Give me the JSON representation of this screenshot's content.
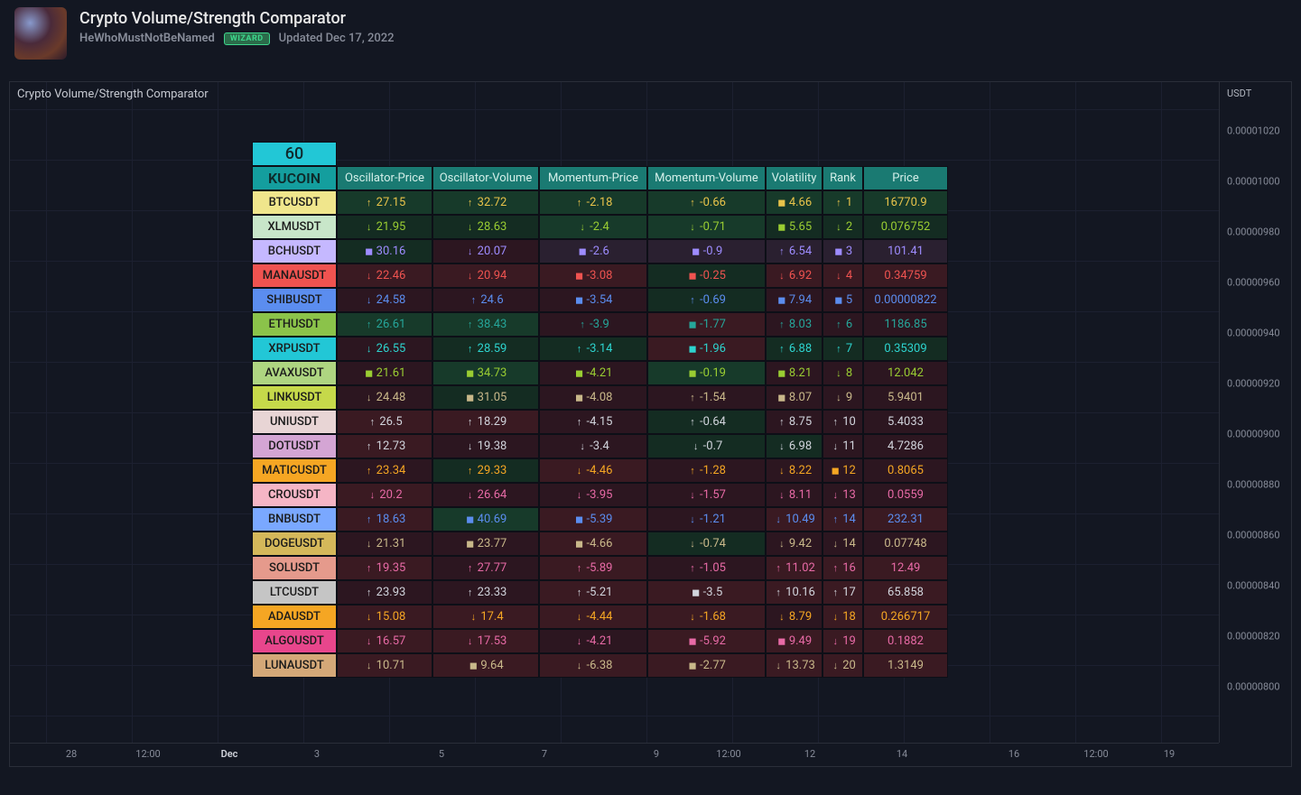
{
  "header": {
    "title": "Crypto Volume/Strength Comparator",
    "author": "HeWhoMustNotBeNamed",
    "badge": "WIZARD",
    "updated": "Updated Dec 17, 2022"
  },
  "pane_label": "Crypto Volume/Strength Comparator",
  "top_pill": "60",
  "exchange_label": "KUCOIN",
  "columns": [
    "Oscillator-Price",
    "Oscillator-Volume",
    "Momentum-Price",
    "Momentum-Volume",
    "Volatility",
    "Rank",
    "Price"
  ],
  "right_axis": {
    "label": "USDT",
    "ticks": [
      "0.00001020",
      "0.00001000",
      "0.00000980",
      "0.00000960",
      "0.00000940",
      "0.00000920",
      "0.00000900",
      "0.00000880",
      "0.00000860",
      "0.00000840",
      "0.00000820",
      "0.00000800"
    ]
  },
  "x_axis": {
    "ticks": [
      {
        "label": "28",
        "pos": 68,
        "bold": false
      },
      {
        "label": "12:00",
        "pos": 153,
        "bold": false
      },
      {
        "label": "Dec",
        "pos": 243,
        "bold": true
      },
      {
        "label": "3",
        "pos": 340,
        "bold": false
      },
      {
        "label": "5",
        "pos": 478,
        "bold": false
      },
      {
        "label": "7",
        "pos": 592,
        "bold": false
      },
      {
        "label": "9",
        "pos": 716,
        "bold": false
      },
      {
        "label": "12:00",
        "pos": 796,
        "bold": false
      },
      {
        "label": "12",
        "pos": 886,
        "bold": false
      },
      {
        "label": "14",
        "pos": 988,
        "bold": false
      },
      {
        "label": "16",
        "pos": 1112,
        "bold": false
      },
      {
        "label": "12:00",
        "pos": 1203,
        "bold": false
      },
      {
        "label": "19",
        "pos": 1284,
        "bold": false
      }
    ]
  },
  "colors": {
    "arrow_up": "↑",
    "arrow_down": "↓",
    "arrow_sq": "◼",
    "bg_green": "#173a2a",
    "bg_dkgreen": "#142c22",
    "bg_red": "#3a1a22",
    "bg_dkred": "#2c1620",
    "bg_neutral": "#2a2030",
    "txt_yellow": "#e8c34a",
    "txt_lime": "#9acd32",
    "txt_green": "#26a69a",
    "txt_teal": "#2dd4cf",
    "txt_red": "#ef5350",
    "txt_pink": "#e86aa6",
    "txt_purple": "#9e8cff",
    "txt_blue": "#5b8def",
    "txt_orange": "#f5a623",
    "txt_white": "#d1d4dc",
    "txt_tan": "#c9b88a"
  },
  "rows": [
    {
      "sym": "BTCUSDT",
      "sym_bg": "#f0e68c",
      "op": {
        "v": "27.15",
        "a": "up",
        "c": "txt_yellow",
        "bg": "bg_green"
      },
      "ov": {
        "v": "32.72",
        "a": "up",
        "c": "txt_yellow",
        "bg": "bg_green"
      },
      "mp": {
        "v": "-2.18",
        "a": "up",
        "c": "txt_yellow",
        "bg": "bg_green"
      },
      "mv": {
        "v": "-0.66",
        "a": "up",
        "c": "txt_yellow",
        "bg": "bg_green"
      },
      "vol": {
        "v": "4.66",
        "a": "sq",
        "c": "txt_yellow",
        "bg": "bg_green"
      },
      "rk": {
        "v": "1",
        "a": "up",
        "c": "txt_yellow",
        "bg": "bg_green"
      },
      "pr": {
        "v": "16770.9",
        "c": "txt_yellow",
        "bg": "bg_green"
      }
    },
    {
      "sym": "XLMUSDT",
      "sym_bg": "#c8e6c9",
      "op": {
        "v": "21.95",
        "a": "down",
        "c": "txt_lime",
        "bg": "bg_dkgreen"
      },
      "ov": {
        "v": "28.63",
        "a": "down",
        "c": "txt_lime",
        "bg": "bg_dkgreen"
      },
      "mp": {
        "v": "-2.4",
        "a": "down",
        "c": "txt_lime",
        "bg": "bg_green"
      },
      "mv": {
        "v": "-0.71",
        "a": "down",
        "c": "txt_lime",
        "bg": "bg_green"
      },
      "vol": {
        "v": "5.65",
        "a": "sq",
        "c": "txt_lime",
        "bg": "bg_dkgreen"
      },
      "rk": {
        "v": "2",
        "a": "down",
        "c": "txt_lime",
        "bg": "bg_dkgreen"
      },
      "pr": {
        "v": "0.076752",
        "c": "txt_lime",
        "bg": "bg_dkgreen"
      }
    },
    {
      "sym": "BCHUSDT",
      "sym_bg": "#c5b8ff",
      "op": {
        "v": "30.16",
        "a": "sq",
        "c": "txt_purple",
        "bg": "bg_dkgreen"
      },
      "ov": {
        "v": "20.07",
        "a": "down",
        "c": "txt_purple",
        "bg": "bg_dkred"
      },
      "mp": {
        "v": "-2.6",
        "a": "sq",
        "c": "txt_purple",
        "bg": "bg_neutral"
      },
      "mv": {
        "v": "-0.9",
        "a": "sq",
        "c": "txt_purple",
        "bg": "bg_neutral"
      },
      "vol": {
        "v": "6.54",
        "a": "up",
        "c": "txt_purple",
        "bg": "bg_neutral"
      },
      "rk": {
        "v": "3",
        "a": "sq",
        "c": "txt_purple",
        "bg": "bg_neutral"
      },
      "pr": {
        "v": "101.41",
        "c": "txt_purple",
        "bg": "bg_neutral"
      }
    },
    {
      "sym": "MANAUSDT",
      "sym_bg": "#ef5350",
      "op": {
        "v": "22.46",
        "a": "down",
        "c": "txt_red",
        "bg": "bg_red"
      },
      "ov": {
        "v": "20.94",
        "a": "down",
        "c": "txt_red",
        "bg": "bg_red"
      },
      "mp": {
        "v": "-3.08",
        "a": "sq",
        "c": "txt_red",
        "bg": "bg_red"
      },
      "mv": {
        "v": "-0.25",
        "a": "sq",
        "c": "txt_red",
        "bg": "bg_dkgreen"
      },
      "vol": {
        "v": "6.92",
        "a": "down",
        "c": "txt_red",
        "bg": "bg_red"
      },
      "rk": {
        "v": "4",
        "a": "down",
        "c": "txt_red",
        "bg": "bg_red"
      },
      "pr": {
        "v": "0.34759",
        "c": "txt_red",
        "bg": "bg_red"
      }
    },
    {
      "sym": "SHIBUSDT",
      "sym_bg": "#5b8def",
      "op": {
        "v": "24.58",
        "a": "down",
        "c": "txt_blue",
        "bg": "bg_dkred"
      },
      "ov": {
        "v": "24.6",
        "a": "up",
        "c": "txt_blue",
        "bg": "bg_dkred"
      },
      "mp": {
        "v": "-3.54",
        "a": "sq",
        "c": "txt_blue",
        "bg": "bg_dkred"
      },
      "mv": {
        "v": "-0.69",
        "a": "up",
        "c": "txt_blue",
        "bg": "bg_dkgreen"
      },
      "vol": {
        "v": "7.94",
        "a": "sq",
        "c": "txt_blue",
        "bg": "bg_dkred"
      },
      "rk": {
        "v": "5",
        "a": "sq",
        "c": "txt_blue",
        "bg": "bg_dkred"
      },
      "pr": {
        "v": "0.00000822",
        "c": "txt_blue",
        "bg": "bg_dkred"
      }
    },
    {
      "sym": "ETHUSDT",
      "sym_bg": "#8bc34a",
      "op": {
        "v": "26.61",
        "a": "up",
        "c": "txt_green",
        "bg": "bg_green"
      },
      "ov": {
        "v": "38.43",
        "a": "up",
        "c": "txt_green",
        "bg": "bg_green"
      },
      "mp": {
        "v": "-3.9",
        "a": "up",
        "c": "txt_green",
        "bg": "bg_dkred"
      },
      "mv": {
        "v": "-1.77",
        "a": "sq",
        "c": "txt_green",
        "bg": "bg_red"
      },
      "vol": {
        "v": "8.03",
        "a": "up",
        "c": "txt_green",
        "bg": "bg_dkred"
      },
      "rk": {
        "v": "6",
        "a": "up",
        "c": "txt_green",
        "bg": "bg_dkred"
      },
      "pr": {
        "v": "1186.85",
        "c": "txt_green",
        "bg": "bg_dkred"
      }
    },
    {
      "sym": "XRPUSDT",
      "sym_bg": "#22c7d6",
      "op": {
        "v": "26.55",
        "a": "down",
        "c": "txt_teal",
        "bg": "bg_dkred"
      },
      "ov": {
        "v": "28.59",
        "a": "up",
        "c": "txt_teal",
        "bg": "bg_dkgreen"
      },
      "mp": {
        "v": "-3.14",
        "a": "up",
        "c": "txt_teal",
        "bg": "bg_dkgreen"
      },
      "mv": {
        "v": "-1.96",
        "a": "sq",
        "c": "txt_teal",
        "bg": "bg_red"
      },
      "vol": {
        "v": "6.88",
        "a": "up",
        "c": "txt_teal",
        "bg": "bg_dkgreen"
      },
      "rk": {
        "v": "7",
        "a": "up",
        "c": "txt_teal",
        "bg": "bg_dkgreen"
      },
      "pr": {
        "v": "0.35309",
        "c": "txt_teal",
        "bg": "bg_dkgreen"
      }
    },
    {
      "sym": "AVAXUSDT",
      "sym_bg": "#aed581",
      "op": {
        "v": "21.61",
        "a": "sq",
        "c": "txt_lime",
        "bg": "bg_dkred"
      },
      "ov": {
        "v": "34.73",
        "a": "sq",
        "c": "txt_lime",
        "bg": "bg_green"
      },
      "mp": {
        "v": "-4.21",
        "a": "sq",
        "c": "txt_lime",
        "bg": "bg_dkred"
      },
      "mv": {
        "v": "-0.19",
        "a": "sq",
        "c": "txt_lime",
        "bg": "bg_green"
      },
      "vol": {
        "v": "8.21",
        "a": "sq",
        "c": "txt_lime",
        "bg": "bg_dkred"
      },
      "rk": {
        "v": "8",
        "a": "down",
        "c": "txt_lime",
        "bg": "bg_dkred"
      },
      "pr": {
        "v": "12.042",
        "c": "txt_lime",
        "bg": "bg_dkred"
      }
    },
    {
      "sym": "LINKUSDT",
      "sym_bg": "#c6d94a",
      "op": {
        "v": "24.48",
        "a": "down",
        "c": "txt_tan",
        "bg": "bg_dkred"
      },
      "ov": {
        "v": "31.05",
        "a": "sq",
        "c": "txt_tan",
        "bg": "bg_dkgreen"
      },
      "mp": {
        "v": "-4.08",
        "a": "sq",
        "c": "txt_tan",
        "bg": "bg_dkred"
      },
      "mv": {
        "v": "-1.54",
        "a": "up",
        "c": "txt_tan",
        "bg": "bg_dkred"
      },
      "vol": {
        "v": "8.07",
        "a": "sq",
        "c": "txt_tan",
        "bg": "bg_dkred"
      },
      "rk": {
        "v": "9",
        "a": "down",
        "c": "txt_tan",
        "bg": "bg_dkred"
      },
      "pr": {
        "v": "5.9401",
        "c": "txt_tan",
        "bg": "bg_dkred"
      }
    },
    {
      "sym": "UNIUSDT",
      "sym_bg": "#e8d5d5",
      "op": {
        "v": "26.5",
        "a": "up",
        "c": "txt_white",
        "bg": "bg_red"
      },
      "ov": {
        "v": "18.29",
        "a": "up",
        "c": "txt_white",
        "bg": "bg_red"
      },
      "mp": {
        "v": "-4.15",
        "a": "up",
        "c": "txt_white",
        "bg": "bg_dkred"
      },
      "mv": {
        "v": "-0.64",
        "a": "up",
        "c": "txt_white",
        "bg": "bg_dkgreen"
      },
      "vol": {
        "v": "8.75",
        "a": "up",
        "c": "txt_white",
        "bg": "bg_dkred"
      },
      "rk": {
        "v": "10",
        "a": "up",
        "c": "txt_white",
        "bg": "bg_dkred"
      },
      "pr": {
        "v": "5.4033",
        "c": "txt_white",
        "bg": "bg_dkred"
      }
    },
    {
      "sym": "DOTUSDT",
      "sym_bg": "#d4a5d4",
      "op": {
        "v": "12.73",
        "a": "up",
        "c": "txt_white",
        "bg": "bg_red"
      },
      "ov": {
        "v": "19.38",
        "a": "down",
        "c": "txt_white",
        "bg": "bg_dkred"
      },
      "mp": {
        "v": "-3.4",
        "a": "down",
        "c": "txt_white",
        "bg": "bg_dkred"
      },
      "mv": {
        "v": "-0.7",
        "a": "down",
        "c": "txt_white",
        "bg": "bg_dkgreen"
      },
      "vol": {
        "v": "6.98",
        "a": "down",
        "c": "txt_white",
        "bg": "bg_dkgreen"
      },
      "rk": {
        "v": "11",
        "a": "down",
        "c": "txt_white",
        "bg": "bg_dkred"
      },
      "pr": {
        "v": "4.7286",
        "c": "txt_white",
        "bg": "bg_dkred"
      }
    },
    {
      "sym": "MATICUSDT",
      "sym_bg": "#f5a623",
      "op": {
        "v": "23.34",
        "a": "up",
        "c": "txt_orange",
        "bg": "bg_dkred"
      },
      "ov": {
        "v": "29.33",
        "a": "up",
        "c": "txt_orange",
        "bg": "bg_dkgreen"
      },
      "mp": {
        "v": "-4.46",
        "a": "down",
        "c": "txt_orange",
        "bg": "bg_red"
      },
      "mv": {
        "v": "-1.28",
        "a": "up",
        "c": "txt_orange",
        "bg": "bg_dkred"
      },
      "vol": {
        "v": "8.22",
        "a": "down",
        "c": "txt_orange",
        "bg": "bg_dkred"
      },
      "rk": {
        "v": "12",
        "a": "sq",
        "c": "txt_orange",
        "bg": "bg_dkred"
      },
      "pr": {
        "v": "0.8065",
        "c": "txt_orange",
        "bg": "bg_dkred"
      }
    },
    {
      "sym": "CROUSDT",
      "sym_bg": "#f5b5c5",
      "op": {
        "v": "20.2",
        "a": "down",
        "c": "txt_pink",
        "bg": "bg_red"
      },
      "ov": {
        "v": "26.64",
        "a": "down",
        "c": "txt_pink",
        "bg": "bg_dkred"
      },
      "mp": {
        "v": "-3.95",
        "a": "down",
        "c": "txt_pink",
        "bg": "bg_dkred"
      },
      "mv": {
        "v": "-1.57",
        "a": "down",
        "c": "txt_pink",
        "bg": "bg_dkred"
      },
      "vol": {
        "v": "8.11",
        "a": "down",
        "c": "txt_pink",
        "bg": "bg_dkred"
      },
      "rk": {
        "v": "13",
        "a": "down",
        "c": "txt_pink",
        "bg": "bg_dkred"
      },
      "pr": {
        "v": "0.0559",
        "c": "txt_pink",
        "bg": "bg_dkred"
      }
    },
    {
      "sym": "BNBUSDT",
      "sym_bg": "#7aa8ff",
      "op": {
        "v": "18.63",
        "a": "up",
        "c": "txt_blue",
        "bg": "bg_red"
      },
      "ov": {
        "v": "40.69",
        "a": "sq",
        "c": "txt_blue",
        "bg": "bg_green"
      },
      "mp": {
        "v": "-5.39",
        "a": "sq",
        "c": "txt_blue",
        "bg": "bg_red"
      },
      "mv": {
        "v": "-1.21",
        "a": "down",
        "c": "txt_blue",
        "bg": "bg_dkred"
      },
      "vol": {
        "v": "10.49",
        "a": "down",
        "c": "txt_blue",
        "bg": "bg_red"
      },
      "rk": {
        "v": "14",
        "a": "up",
        "c": "txt_blue",
        "bg": "bg_red"
      },
      "pr": {
        "v": "232.31",
        "c": "txt_blue",
        "bg": "bg_red"
      }
    },
    {
      "sym": "DOGEUSDT",
      "sym_bg": "#d4b85a",
      "op": {
        "v": "21.31",
        "a": "down",
        "c": "txt_tan",
        "bg": "bg_dkred"
      },
      "ov": {
        "v": "23.77",
        "a": "sq",
        "c": "txt_tan",
        "bg": "bg_dkred"
      },
      "mp": {
        "v": "-4.66",
        "a": "sq",
        "c": "txt_tan",
        "bg": "bg_red"
      },
      "mv": {
        "v": "-0.74",
        "a": "down",
        "c": "txt_tan",
        "bg": "bg_dkgreen"
      },
      "vol": {
        "v": "9.42",
        "a": "down",
        "c": "txt_tan",
        "bg": "bg_dkred"
      },
      "rk": {
        "v": "14",
        "a": "down",
        "c": "txt_tan",
        "bg": "bg_dkred"
      },
      "pr": {
        "v": "0.07748",
        "c": "txt_tan",
        "bg": "bg_dkred"
      }
    },
    {
      "sym": "SOLUSDT",
      "sym_bg": "#e59a8c",
      "op": {
        "v": "19.35",
        "a": "up",
        "c": "txt_pink",
        "bg": "bg_red"
      },
      "ov": {
        "v": "27.77",
        "a": "up",
        "c": "txt_pink",
        "bg": "bg_dkred"
      },
      "mp": {
        "v": "-5.89",
        "a": "up",
        "c": "txt_pink",
        "bg": "bg_red"
      },
      "mv": {
        "v": "-1.05",
        "a": "up",
        "c": "txt_pink",
        "bg": "bg_dkred"
      },
      "vol": {
        "v": "11.02",
        "a": "up",
        "c": "txt_pink",
        "bg": "bg_red"
      },
      "rk": {
        "v": "16",
        "a": "up",
        "c": "txt_pink",
        "bg": "bg_red"
      },
      "pr": {
        "v": "12.49",
        "c": "txt_pink",
        "bg": "bg_red"
      }
    },
    {
      "sym": "LTCUSDT",
      "sym_bg": "#c5c5c5",
      "op": {
        "v": "23.93",
        "a": "up",
        "c": "txt_white",
        "bg": "bg_dkred"
      },
      "ov": {
        "v": "23.33",
        "a": "up",
        "c": "txt_white",
        "bg": "bg_dkred"
      },
      "mp": {
        "v": "-5.21",
        "a": "up",
        "c": "txt_white",
        "bg": "bg_red"
      },
      "mv": {
        "v": "-3.5",
        "a": "sq",
        "c": "txt_white",
        "bg": "bg_red"
      },
      "vol": {
        "v": "10.16",
        "a": "up",
        "c": "txt_white",
        "bg": "bg_red"
      },
      "rk": {
        "v": "17",
        "a": "up",
        "c": "txt_white",
        "bg": "bg_red"
      },
      "pr": {
        "v": "65.858",
        "c": "txt_white",
        "bg": "bg_red"
      }
    },
    {
      "sym": "ADAUSDT",
      "sym_bg": "#f5a623",
      "op": {
        "v": "15.08",
        "a": "down",
        "c": "txt_orange",
        "bg": "bg_red"
      },
      "ov": {
        "v": "17.4",
        "a": "down",
        "c": "txt_orange",
        "bg": "bg_red"
      },
      "mp": {
        "v": "-4.44",
        "a": "down",
        "c": "txt_orange",
        "bg": "bg_red"
      },
      "mv": {
        "v": "-1.68",
        "a": "down",
        "c": "txt_orange",
        "bg": "bg_red"
      },
      "vol": {
        "v": "8.79",
        "a": "down",
        "c": "txt_orange",
        "bg": "bg_dkred"
      },
      "rk": {
        "v": "18",
        "a": "down",
        "c": "txt_orange",
        "bg": "bg_red"
      },
      "pr": {
        "v": "0.266717",
        "c": "txt_orange",
        "bg": "bg_red"
      }
    },
    {
      "sym": "ALGOUSDT",
      "sym_bg": "#e8468c",
      "op": {
        "v": "16.57",
        "a": "down",
        "c": "txt_pink",
        "bg": "bg_red"
      },
      "ov": {
        "v": "17.53",
        "a": "down",
        "c": "txt_pink",
        "bg": "bg_red"
      },
      "mp": {
        "v": "-4.21",
        "a": "down",
        "c": "txt_pink",
        "bg": "bg_dkred"
      },
      "mv": {
        "v": "-5.92",
        "a": "sq",
        "c": "txt_pink",
        "bg": "bg_red"
      },
      "vol": {
        "v": "9.49",
        "a": "sq",
        "c": "txt_pink",
        "bg": "bg_red"
      },
      "rk": {
        "v": "19",
        "a": "down",
        "c": "txt_pink",
        "bg": "bg_red"
      },
      "pr": {
        "v": "0.1882",
        "c": "txt_pink",
        "bg": "bg_red"
      }
    },
    {
      "sym": "LUNAUSDT",
      "sym_bg": "#d4a878",
      "op": {
        "v": "10.71",
        "a": "down",
        "c": "txt_tan",
        "bg": "bg_red"
      },
      "ov": {
        "v": "9.64",
        "a": "sq",
        "c": "txt_tan",
        "bg": "bg_red"
      },
      "mp": {
        "v": "-6.38",
        "a": "down",
        "c": "txt_tan",
        "bg": "bg_red"
      },
      "mv": {
        "v": "-2.77",
        "a": "sq",
        "c": "txt_tan",
        "bg": "bg_red"
      },
      "vol": {
        "v": "13.73",
        "a": "down",
        "c": "txt_tan",
        "bg": "bg_red"
      },
      "rk": {
        "v": "20",
        "a": "down",
        "c": "txt_tan",
        "bg": "bg_red"
      },
      "pr": {
        "v": "1.3149",
        "c": "txt_tan",
        "bg": "bg_red"
      }
    }
  ]
}
